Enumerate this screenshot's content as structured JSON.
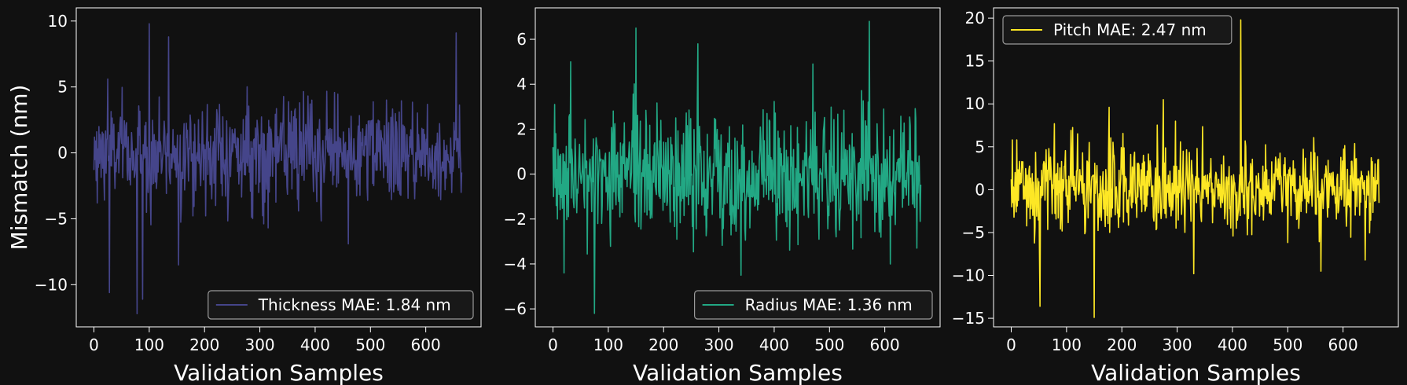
{
  "figure": {
    "background": "#111111",
    "axes_facecolor": "#111111",
    "text_color": "#ffffff"
  },
  "chart_data": [
    {
      "type": "line",
      "xlabel": "Validation Samples",
      "ylabel": "Mismatch (nm)",
      "xlim": [
        -32,
        700
      ],
      "ylim": [
        -13.2,
        11.0
      ],
      "xticks": [
        0,
        100,
        200,
        300,
        400,
        500,
        600
      ],
      "yticks": [
        -10,
        -5,
        0,
        5,
        10
      ],
      "legend_loc": "lower-right",
      "series": [
        {
          "name": "Thickness MAE: 1.84 nm",
          "color": "#45458a",
          "n_points": 666,
          "mae": 1.84,
          "sample_values": [
            -1.3,
            1.2,
            -0.5,
            0.9,
            -2.1,
            1.6,
            -3.8,
            0.3,
            -1.1,
            2.0,
            -0.8,
            1.4
          ],
          "peaks": [
            [
              25,
              5.6
            ],
            [
              28,
              -10.6
            ],
            [
              78,
              -12.2
            ],
            [
              88,
              -11.1
            ],
            [
              100,
              9.8
            ],
            [
              135,
              8.8
            ],
            [
              153,
              -8.5
            ],
            [
              460,
              -6.9
            ],
            [
              655,
              9.1
            ]
          ]
        }
      ]
    },
    {
      "type": "line",
      "xlabel": "Validation Samples",
      "ylabel": "",
      "xlim": [
        -32,
        700
      ],
      "ylim": [
        -6.8,
        7.4
      ],
      "xticks": [
        0,
        100,
        200,
        300,
        400,
        500,
        600
      ],
      "yticks": [
        -6,
        -4,
        -2,
        0,
        2,
        4,
        6
      ],
      "legend_loc": "lower-right",
      "series": [
        {
          "name": "Radius MAE: 1.36 nm",
          "color": "#22a884",
          "n_points": 666,
          "mae": 1.36,
          "sample_values": [
            1.2,
            -1.0,
            0.5,
            3.1,
            -0.6,
            1.8,
            -1.4,
            0.2,
            -2.0,
            1.1,
            0.4,
            -0.9
          ],
          "peaks": [
            [
              20,
              -4.4
            ],
            [
              32,
              5.0
            ],
            [
              75,
              -6.2
            ],
            [
              150,
              6.5
            ],
            [
              262,
              5.8
            ],
            [
              340,
              -4.5
            ],
            [
              470,
              4.9
            ],
            [
              572,
              6.8
            ],
            [
              610,
              -4.0
            ]
          ]
        }
      ]
    },
    {
      "type": "line",
      "xlabel": "Validation Samples",
      "ylabel": "",
      "xlim": [
        -32,
        700
      ],
      "ylim": [
        -16.0,
        21.2
      ],
      "xticks": [
        0,
        100,
        200,
        300,
        400,
        500,
        600
      ],
      "yticks": [
        -15,
        -10,
        -5,
        0,
        5,
        10,
        15,
        20
      ],
      "legend_loc": "upper-left",
      "series": [
        {
          "name": "Pitch MAE: 2.47 nm",
          "color": "#fde725",
          "n_points": 666,
          "mae": 2.47,
          "sample_values": [
            1.2,
            -2.0,
            5.8,
            -1.5,
            0.3,
            -3.2,
            -0.8,
            2.0,
            -1.1,
            -2.6,
            0.6,
            -1.9
          ],
          "peaks": [
            [
              10,
              5.8
            ],
            [
              52,
              -13.6
            ],
            [
              150,
              -14.9
            ],
            [
              177,
              9.6
            ],
            [
              275,
              10.5
            ],
            [
              330,
              -9.8
            ],
            [
              415,
              19.8
            ],
            [
              560,
              -9.5
            ],
            [
              640,
              -8.2
            ]
          ]
        }
      ]
    }
  ]
}
